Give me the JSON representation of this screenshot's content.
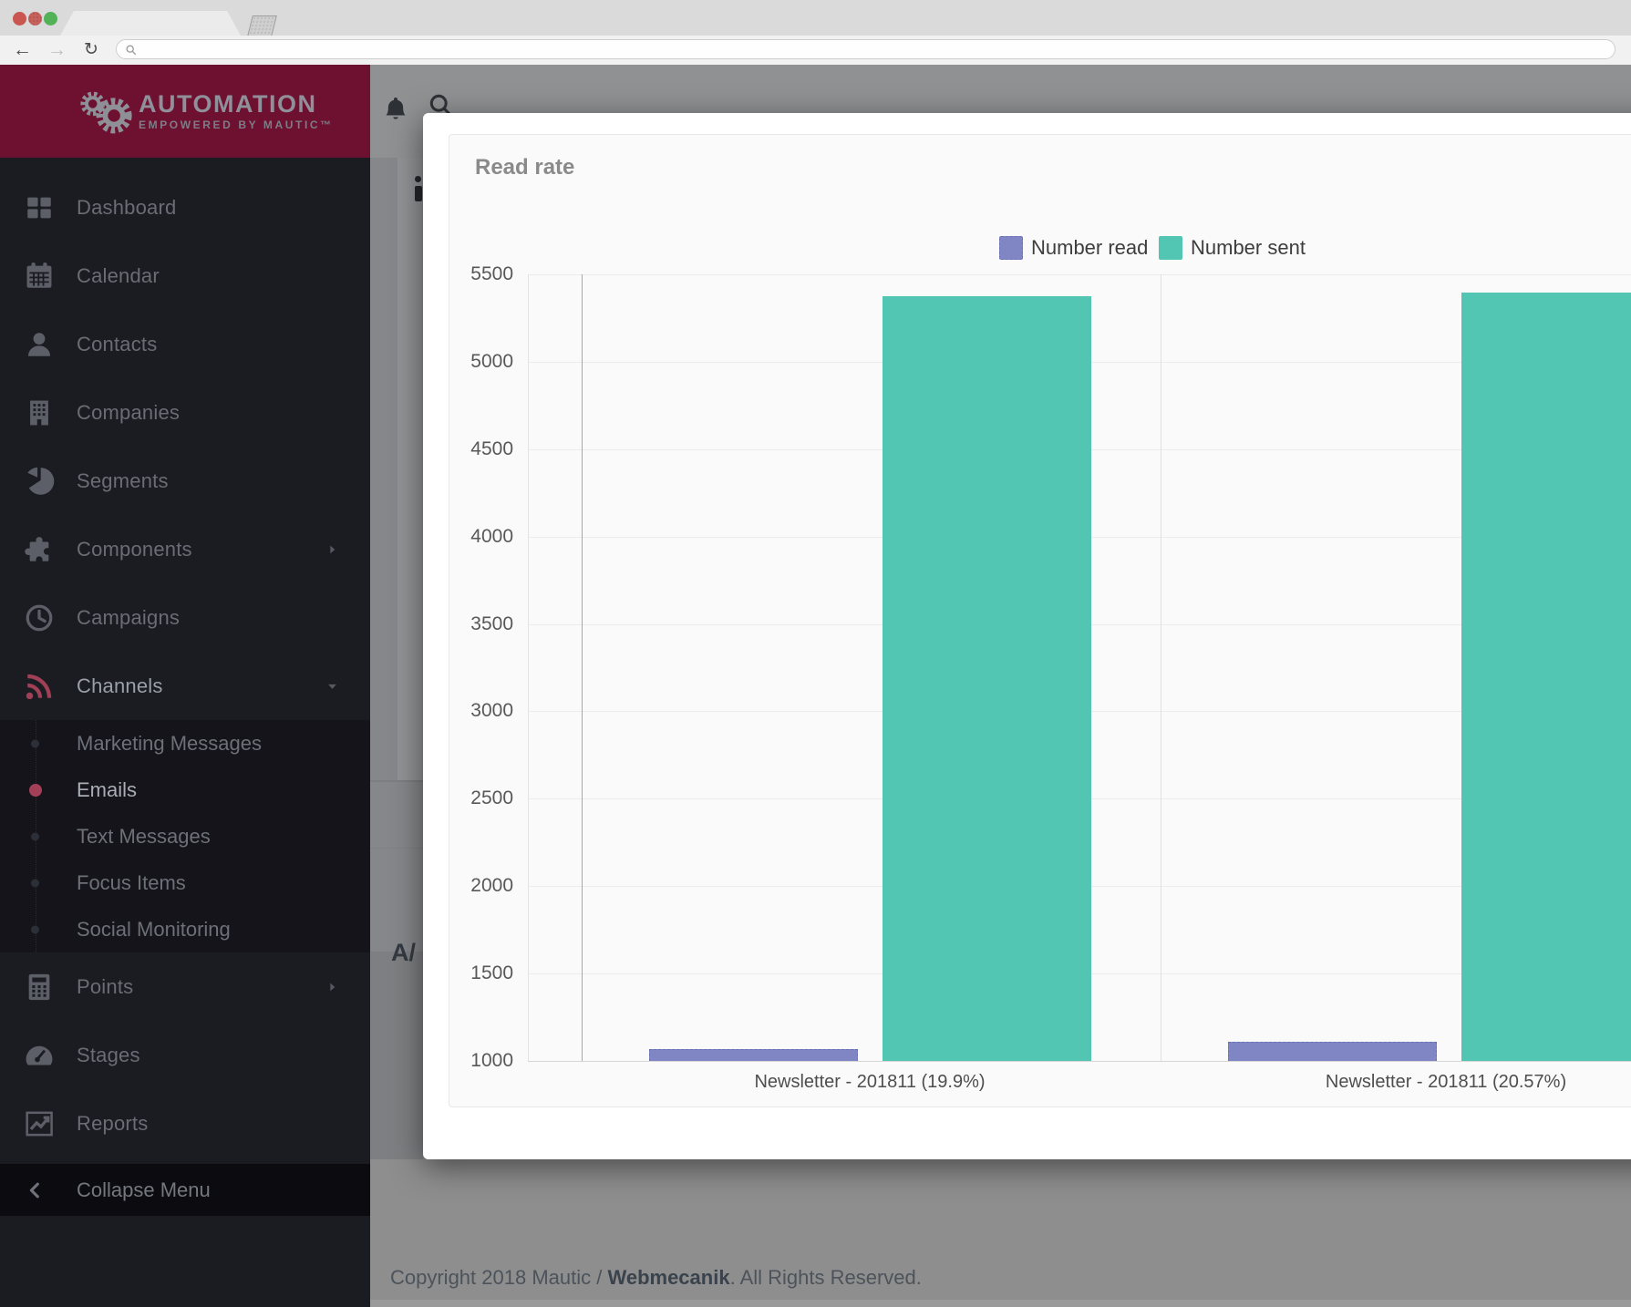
{
  "browser": {
    "url_value": "",
    "traffic_lights": [
      "close",
      "minimize",
      "zoom"
    ]
  },
  "app": {
    "logo_title": "AUTOMATION",
    "logo_subtitle": "EMPOWERED BY MAUTIC™",
    "logo_color": "#6e102f"
  },
  "topbar": {
    "icons": [
      "bell-icon",
      "search-icon"
    ]
  },
  "sidebar": {
    "items": [
      {
        "label": "Dashboard",
        "icon": "dashboard-icon"
      },
      {
        "label": "Calendar",
        "icon": "calendar-icon"
      },
      {
        "label": "Contacts",
        "icon": "contacts-icon"
      },
      {
        "label": "Companies",
        "icon": "companies-icon"
      },
      {
        "label": "Segments",
        "icon": "segments-icon"
      },
      {
        "label": "Components",
        "icon": "components-icon",
        "chevron": "right"
      },
      {
        "label": "Campaigns",
        "icon": "campaigns-icon"
      },
      {
        "label": "Channels",
        "icon": "channels-icon",
        "chevron": "down",
        "active": true,
        "submenu": [
          {
            "label": "Marketing Messages"
          },
          {
            "label": "Emails",
            "active": true
          },
          {
            "label": "Text Messages"
          },
          {
            "label": "Focus Items"
          },
          {
            "label": "Social Monitoring"
          }
        ]
      },
      {
        "label": "Points",
        "icon": "points-icon",
        "chevron": "right"
      },
      {
        "label": "Stages",
        "icon": "stages-icon"
      },
      {
        "label": "Reports",
        "icon": "reports-icon"
      }
    ],
    "collapse_label": "Collapse Menu"
  },
  "behind_modal": {
    "partial_heading": "A/"
  },
  "modal": {
    "title": "Read rate"
  },
  "chart_data": {
    "type": "bar",
    "title": "Read rate",
    "categories": [
      "Newsletter - 201811 (19.9%)",
      "Newsletter - 201811 (20.57%)"
    ],
    "series": [
      {
        "name": "Number read",
        "color": "#8086c3",
        "border": "#6b73b8",
        "values": [
          1070,
          1110
        ]
      },
      {
        "name": "Number sent",
        "color": "#52c6b2",
        "border": "#52c6b2",
        "values": [
          5377,
          5396
        ]
      }
    ],
    "y_ticks": [
      5500,
      5000,
      4500,
      4000,
      3500,
      3000,
      2500,
      2000,
      1500,
      1000
    ],
    "ylim": [
      1000,
      5500
    ],
    "xlabel": "",
    "ylabel": "",
    "grid": true,
    "legend_position": "top"
  },
  "footer": {
    "copyright_prefix": "Copyright 2018 Mautic / ",
    "link_label": "Webmecanik",
    "suffix": ". All Rights Reserved."
  }
}
